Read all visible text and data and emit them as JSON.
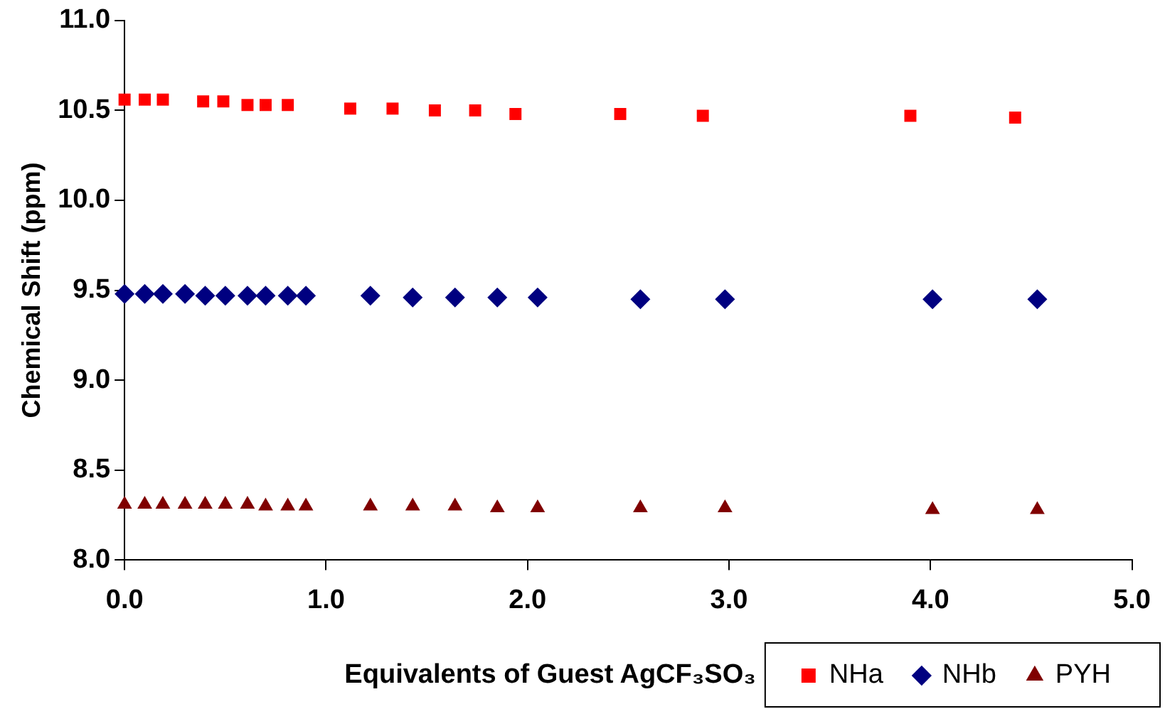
{
  "chart_data": {
    "type": "scatter",
    "xlabel": "Equivalents of Guest AgCF₃SO₃",
    "ylabel": "Chemical Shift (ppm)",
    "xlim": [
      0,
      5
    ],
    "xticks": [
      {
        "value": 0,
        "label": "0.0"
      },
      {
        "value": 1,
        "label": "1.0"
      },
      {
        "value": 2,
        "label": "2.0"
      },
      {
        "value": 3,
        "label": "3.0"
      },
      {
        "value": 4,
        "label": "4.0"
      },
      {
        "value": 5,
        "label": "5.0"
      }
    ],
    "ylim": [
      8,
      11
    ],
    "yticks": [
      {
        "value": 8,
        "label": "8.0"
      },
      {
        "value": 8.5,
        "label": "8.5"
      },
      {
        "value": 9,
        "label": "9.0"
      },
      {
        "value": 9.5,
        "label": "9.5"
      },
      {
        "value": 10,
        "label": "10.0"
      },
      {
        "value": 10.5,
        "label": "10.5"
      },
      {
        "value": 11,
        "label": "11.0"
      }
    ],
    "grid": false,
    "legend": "bottom right",
    "series": [
      {
        "name": "NHa",
        "color": "#ff0000",
        "marker": "square",
        "x": [
          0,
          0.1,
          0.19,
          0.39,
          0.49,
          0.61,
          0.7,
          0.81,
          1.12,
          1.33,
          1.54,
          1.74,
          1.94,
          2.46,
          2.87,
          3.9,
          4.42
        ],
        "values": [
          10.56,
          10.56,
          10.56,
          10.55,
          10.55,
          10.53,
          10.53,
          10.53,
          10.51,
          10.51,
          10.5,
          10.5,
          10.48,
          10.48,
          10.47,
          10.47,
          10.46
        ]
      },
      {
        "name": "NHb",
        "color": "#000080",
        "marker": "diamond",
        "x": [
          0,
          0.1,
          0.19,
          0.3,
          0.4,
          0.5,
          0.61,
          0.7,
          0.81,
          0.9,
          1.22,
          1.43,
          1.64,
          1.85,
          2.05,
          2.56,
          2.98,
          4.01,
          4.53
        ],
        "values": [
          9.48,
          9.48,
          9.48,
          9.48,
          9.47,
          9.47,
          9.47,
          9.47,
          9.47,
          9.47,
          9.47,
          9.46,
          9.46,
          9.46,
          9.46,
          9.45,
          9.45,
          9.45,
          9.45
        ]
      },
      {
        "name": "PYH",
        "color": "#800000",
        "marker": "triangle",
        "x": [
          0,
          0.1,
          0.19,
          0.3,
          0.4,
          0.5,
          0.61,
          0.7,
          0.81,
          0.9,
          1.22,
          1.43,
          1.64,
          1.85,
          2.05,
          2.56,
          2.98,
          4.01,
          4.53
        ],
        "values": [
          8.31,
          8.31,
          8.31,
          8.31,
          8.31,
          8.31,
          8.31,
          8.3,
          8.3,
          8.3,
          8.3,
          8.3,
          8.3,
          8.29,
          8.29,
          8.29,
          8.29,
          8.28,
          8.28
        ]
      }
    ]
  }
}
